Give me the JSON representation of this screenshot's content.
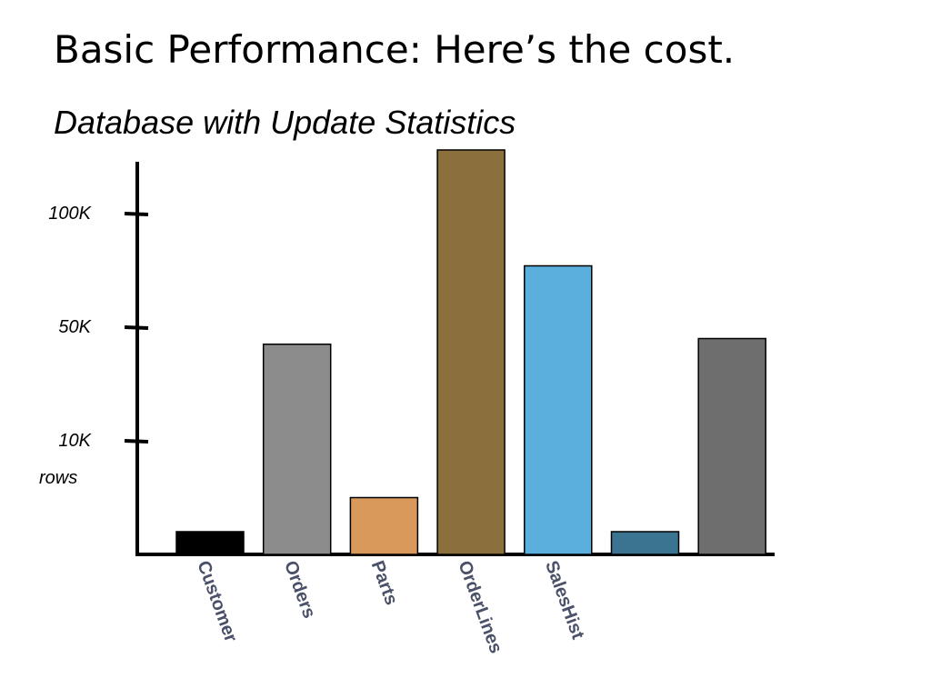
{
  "chart_data": {
    "type": "bar",
    "title": "Basic Performance: Here’s the cost.",
    "subtitle": "Database with Update Statistics",
    "y_label": "rows",
    "scale": "piecewise",
    "categories": [
      "Customer",
      "Orders",
      "Parts",
      "OrderLines",
      "SalesHist",
      null,
      null
    ],
    "values": [
      2000,
      44000,
      5000,
      128000,
      77000,
      2000,
      46000
    ],
    "colors": [
      "#000000",
      "#8c8c8c",
      "#d9995a",
      "#8b6f3c",
      "#5aafdd",
      "#3a7491",
      "#6e6e6e"
    ],
    "ylim": [
      0,
      128000
    ],
    "yticks": [
      {
        "value": 10000,
        "label": "10K"
      },
      {
        "value": 50000,
        "label": "50K"
      },
      {
        "value": 100000,
        "label": "100K"
      }
    ]
  }
}
